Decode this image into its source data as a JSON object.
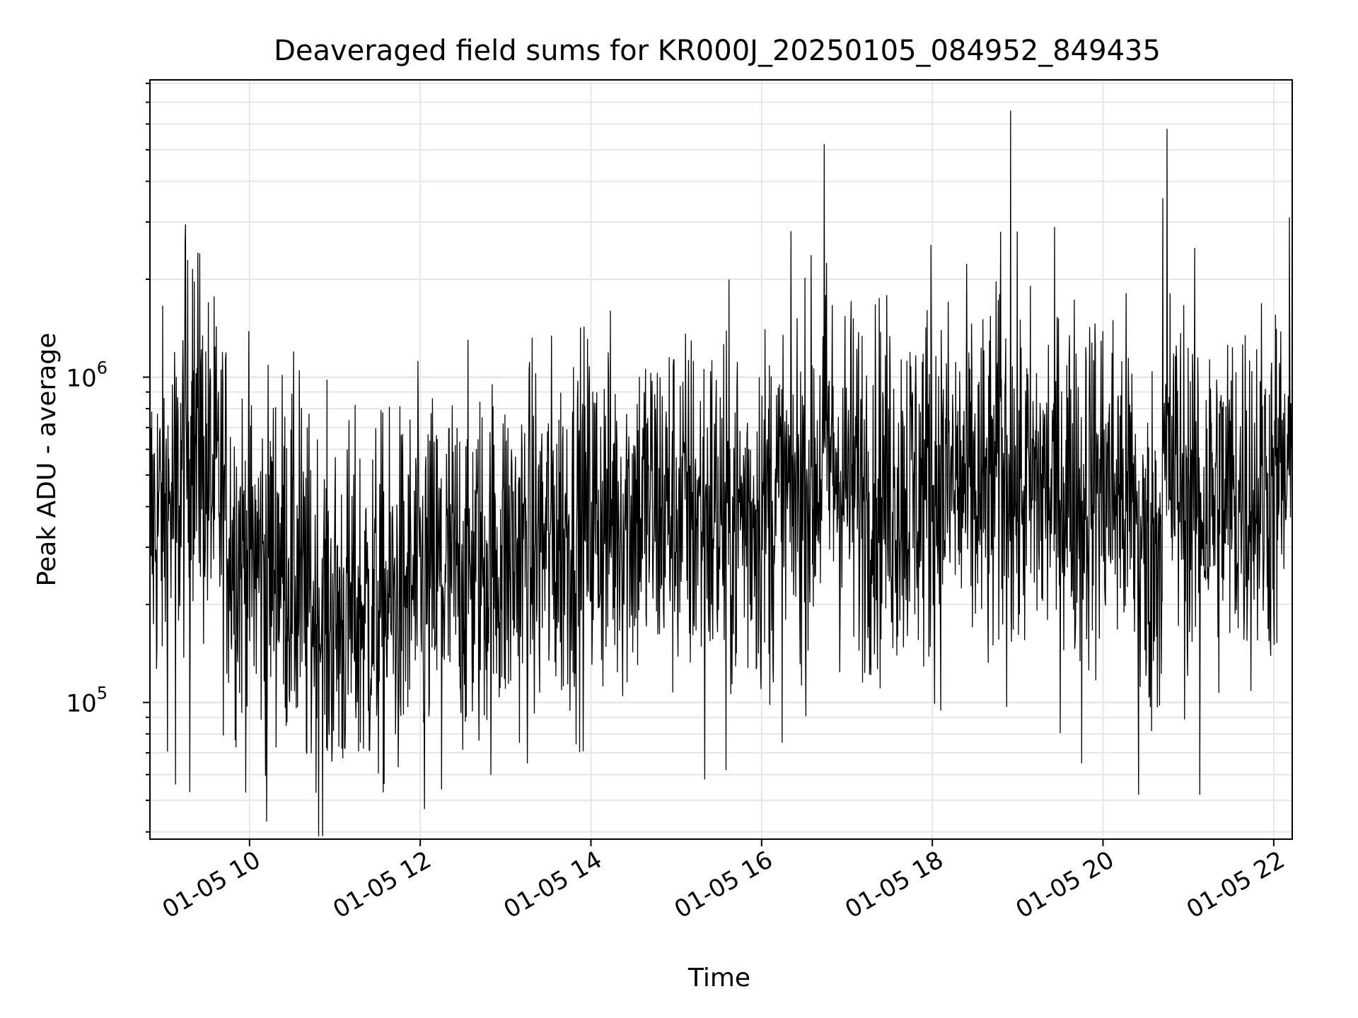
{
  "chart_data": {
    "type": "line",
    "title": "Deaveraged field sums for KR000J_20250105_084952_849435",
    "xlabel": "Time",
    "ylabel": "Peak ADU - average",
    "x_tick_labels": [
      "01-05 10",
      "01-05 12",
      "01-05 14",
      "01-05 16",
      "01-05 18",
      "01-05 20",
      "01-05 22"
    ],
    "y_scale": "log",
    "ylim": [
      38000,
      8200000
    ],
    "y_tick_labels": [
      {
        "base": "10",
        "exp": "5"
      },
      {
        "base": "10",
        "exp": "6"
      }
    ],
    "xlim": [
      "01-05 08:50",
      "01-05 22:13"
    ],
    "grid": true,
    "line_color": "#000000",
    "series": [
      {
        "x": [
          "01-05 08:50",
          "01-05 09:00",
          "01-05 09:10",
          "01-05 09:15",
          "01-05 09:20",
          "01-05 09:30",
          "01-05 09:40",
          "01-05 09:50",
          "01-05 10:00",
          "01-05 10:10",
          "01-05 10:20",
          "01-05 10:30",
          "01-05 10:40",
          "01-05 10:50",
          "01-05 11:00",
          "01-05 11:20",
          "01-05 11:40",
          "01-05 12:00",
          "01-05 12:20",
          "01-05 12:40",
          "01-05 13:00",
          "01-05 13:20",
          "01-05 13:40",
          "01-05 14:00",
          "01-05 14:20",
          "01-05 14:40",
          "01-05 15:00",
          "01-05 15:20",
          "01-05 15:40",
          "01-05 16:00",
          "01-05 16:20",
          "01-05 16:40",
          "01-05 16:45",
          "01-05 17:00",
          "01-05 17:20",
          "01-05 17:40",
          "01-05 18:00",
          "01-05 18:20",
          "01-05 18:40",
          "01-05 18:48",
          "01-05 19:00",
          "01-05 19:20",
          "01-05 19:40",
          "01-05 20:00",
          "01-05 20:20",
          "01-05 20:30",
          "01-05 20:40",
          "01-05 20:45",
          "01-05 21:00",
          "01-05 21:20",
          "01-05 21:40",
          "01-05 22:00",
          "01-05 22:12"
        ],
        "y": [
          350000,
          380000,
          420000,
          600000,
          650000,
          500000,
          430000,
          300000,
          280000,
          260000,
          300000,
          250000,
          200000,
          190000,
          180000,
          190000,
          200000,
          230000,
          250000,
          260000,
          280000,
          300000,
          330000,
          370000,
          380000,
          400000,
          390000,
          380000,
          370000,
          400000,
          420000,
          520000,
          600000,
          480000,
          460000,
          450000,
          470000,
          460000,
          420000,
          520000,
          450000,
          460000,
          470000,
          470000,
          430000,
          250000,
          350000,
          550000,
          430000,
          420000,
          440000,
          470000,
          480000
        ]
      }
    ],
    "spikes": [
      {
        "x": "01-05 09:15",
        "y": 2950000
      },
      {
        "x": "01-05 09:20",
        "y": 2150000
      },
      {
        "x": "01-05 09:25",
        "y": 2400000
      },
      {
        "x": "01-05 10:35",
        "y": 1050000
      },
      {
        "x": "01-05 16:44",
        "y": 5200000
      },
      {
        "x": "01-05 17:59",
        "y": 2550000
      },
      {
        "x": "01-05 18:48",
        "y": 2800000
      },
      {
        "x": "01-05 18:55",
        "y": 6600000
      },
      {
        "x": "01-05 20:42",
        "y": 3550000
      },
      {
        "x": "01-05 20:45",
        "y": 5800000
      },
      {
        "x": "01-05 22:11",
        "y": 3100000
      }
    ],
    "dips": [
      {
        "x": "01-05 09:08",
        "y": 56000
      },
      {
        "x": "01-05 09:18",
        "y": 53000
      },
      {
        "x": "01-05 10:12",
        "y": 43000
      },
      {
        "x": "01-05 12:03",
        "y": 47000
      },
      {
        "x": "01-05 12:15",
        "y": 54000
      },
      {
        "x": "01-05 15:20",
        "y": 58000
      },
      {
        "x": "01-05 15:35",
        "y": 62000
      },
      {
        "x": "01-05 19:45",
        "y": 65000
      },
      {
        "x": "01-05 20:25",
        "y": 52000
      },
      {
        "x": "01-05 21:08",
        "y": 52000
      }
    ]
  }
}
